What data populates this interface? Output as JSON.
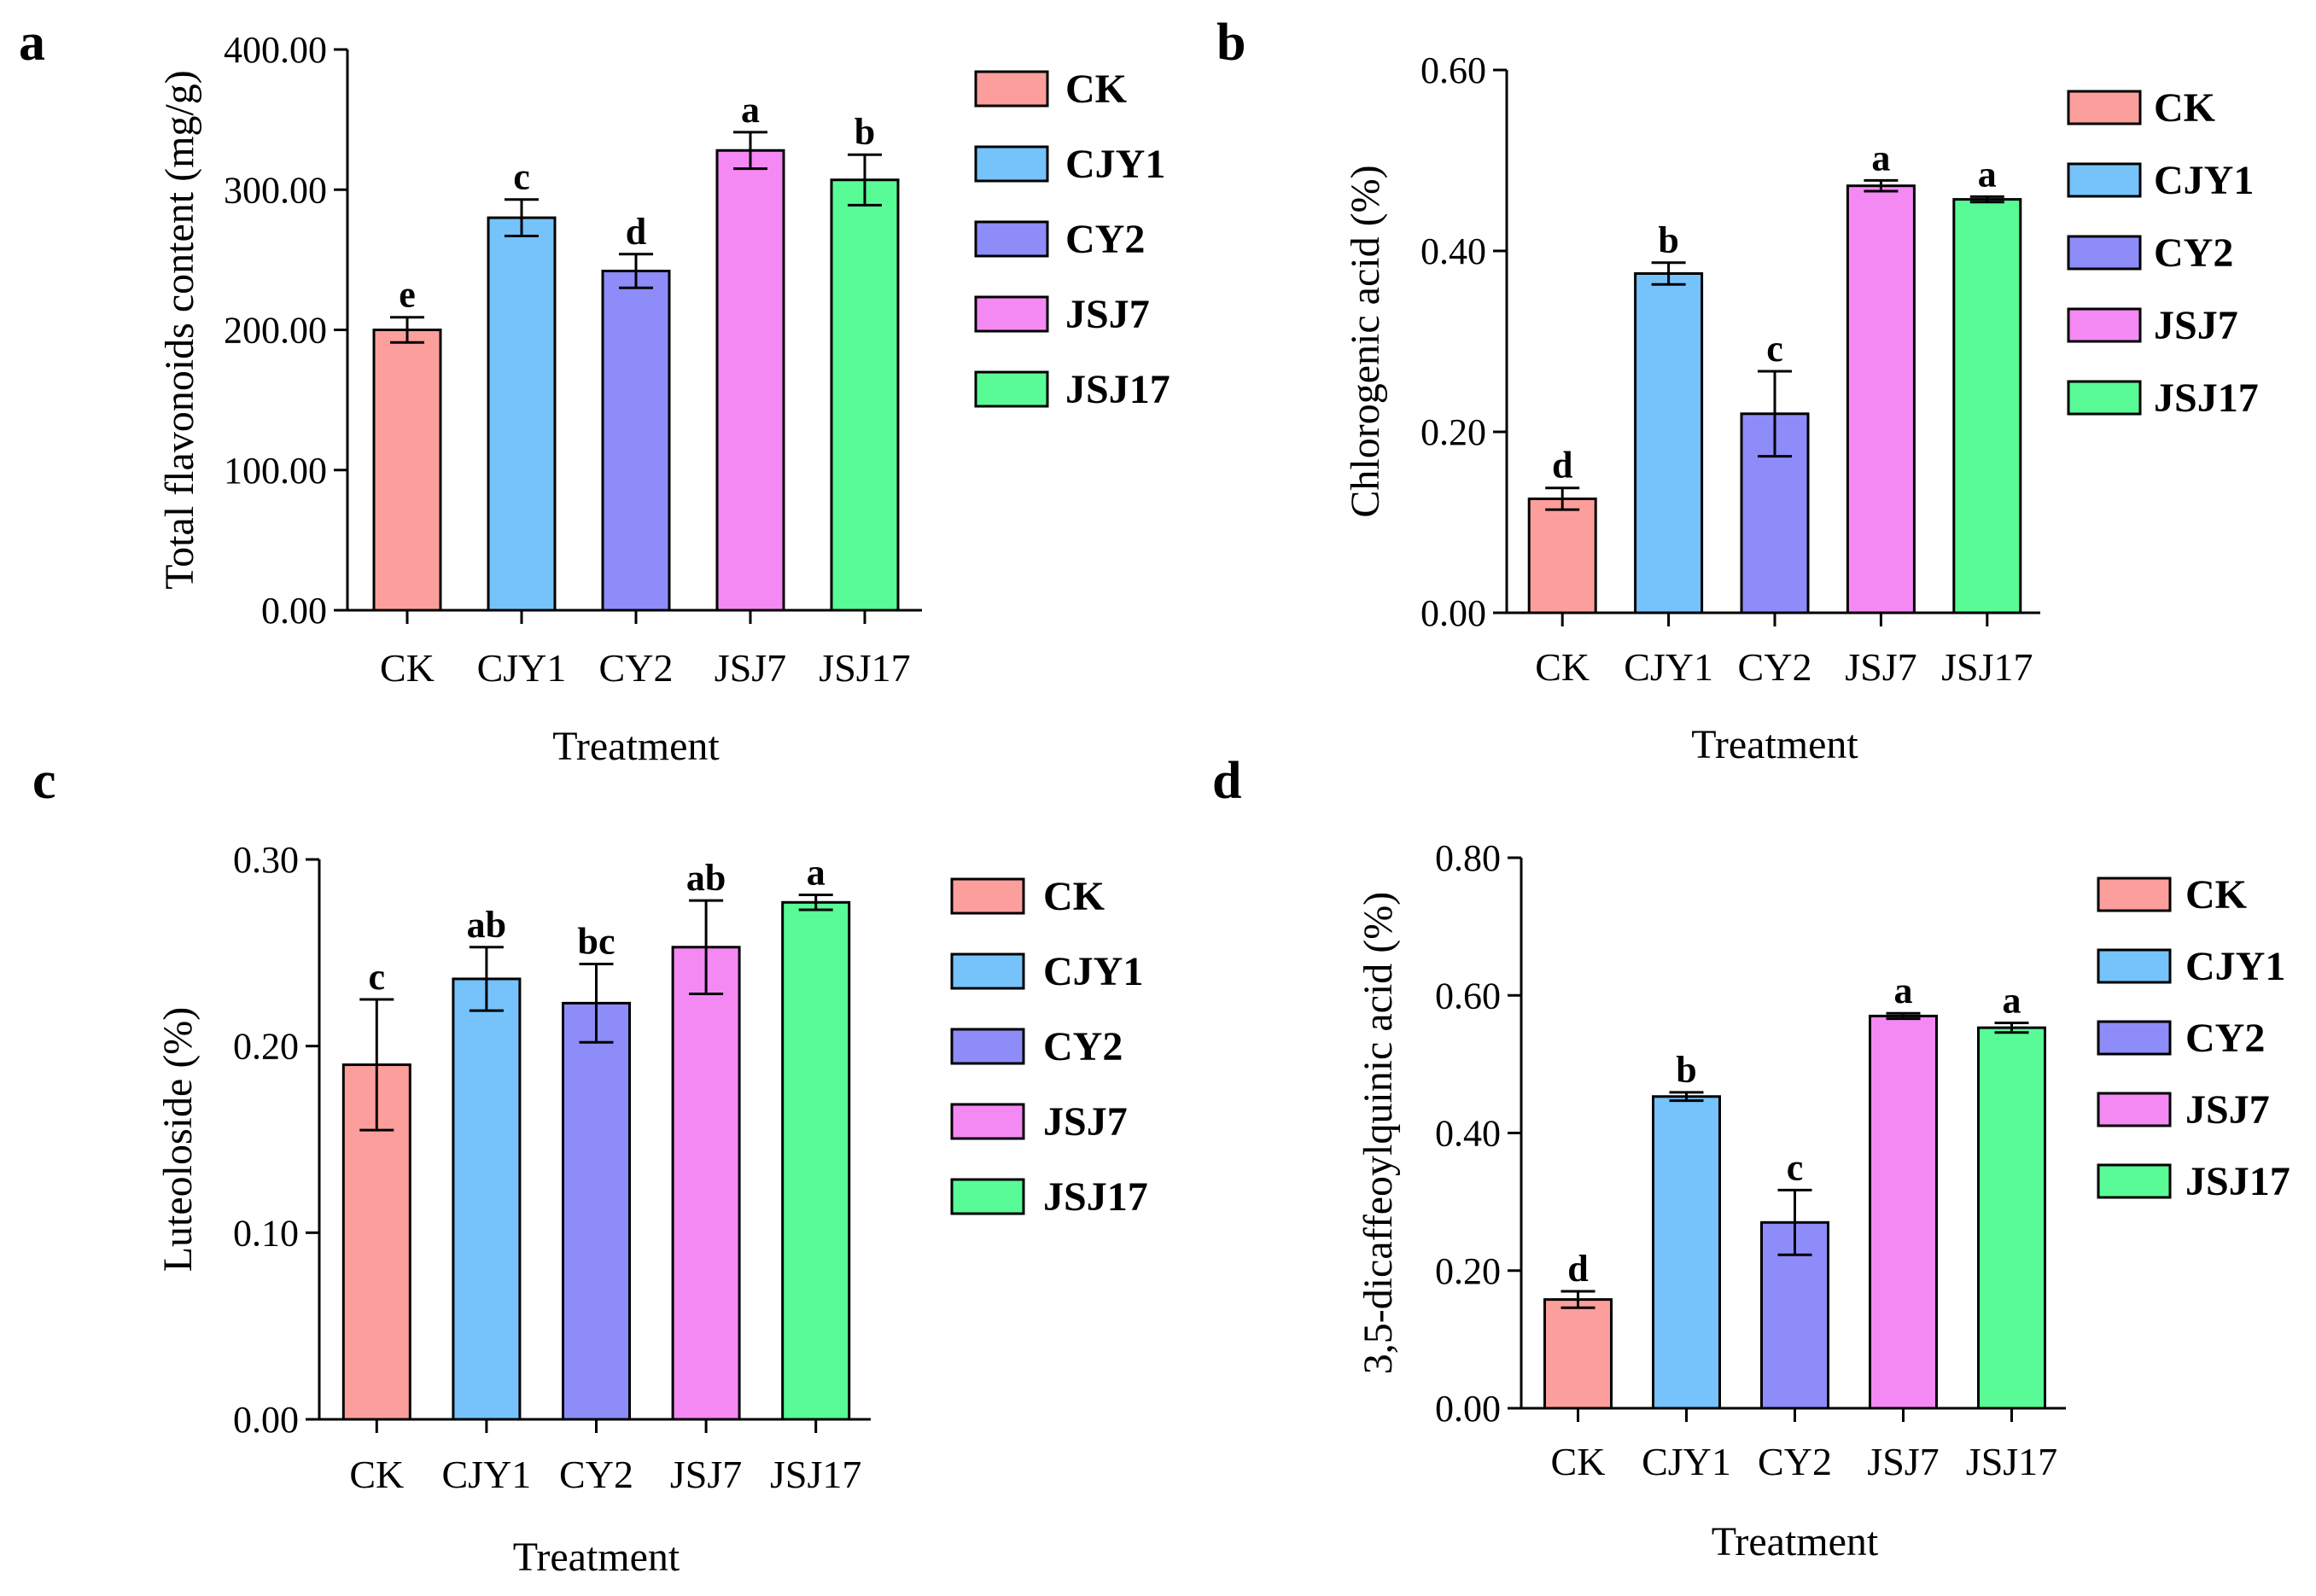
{
  "colors": {
    "CK": "#fc9f9c",
    "CJY1": "#76c2fb",
    "CY2": "#8d8cf8",
    "JSJ7": "#f489f3",
    "JSJ17": "#58fb96"
  },
  "legend_labels": [
    "CK",
    "CJY1",
    "CY2",
    "JSJ7",
    "JSJ17"
  ],
  "chart_data": [
    {
      "panel": "a",
      "type": "bar",
      "categories": [
        "CK",
        "CJY1",
        "CY2",
        "JSJ7",
        "JSJ17"
      ],
      "values": [
        200,
        280,
        242,
        328,
        307
      ],
      "errors": [
        9,
        13,
        12,
        13,
        18
      ],
      "significance": [
        "e",
        "c",
        "d",
        "a",
        "b"
      ],
      "ylabel": "Total flavonoids content (mg/g)",
      "xlabel": "Treatment",
      "ylim": [
        0,
        400
      ],
      "yticks": [
        "0.00",
        "100.00",
        "200.00",
        "300.00",
        "400.00"
      ]
    },
    {
      "panel": "b",
      "type": "bar",
      "categories": [
        "CK",
        "CJY1",
        "CY2",
        "JSJ7",
        "JSJ17"
      ],
      "values": [
        0.126,
        0.375,
        0.22,
        0.472,
        0.457
      ],
      "errors": [
        0.012,
        0.012,
        0.047,
        0.006,
        0.003
      ],
      "significance": [
        "d",
        "b",
        "c",
        "a",
        "a"
      ],
      "ylabel": "Chlorogenic acid (%)",
      "xlabel": "Treatment",
      "ylim": [
        0,
        0.6
      ],
      "yticks": [
        "0.00",
        "0.20",
        "0.40",
        "0.60"
      ]
    },
    {
      "panel": "c",
      "type": "bar",
      "categories": [
        "CK",
        "CJY1",
        "CY2",
        "JSJ7",
        "JSJ17"
      ],
      "values": [
        0.19,
        0.236,
        0.223,
        0.253,
        0.277
      ],
      "errors": [
        0.035,
        0.017,
        0.021,
        0.025,
        0.004
      ],
      "significance": [
        "c",
        "ab",
        "bc",
        "ab",
        "a"
      ],
      "ylabel": "Luteoloside (%)",
      "xlabel": "Treatment",
      "ylim": [
        0,
        0.3
      ],
      "yticks": [
        "0.00",
        "0.10",
        "0.20",
        "0.30"
      ]
    },
    {
      "panel": "d",
      "type": "bar",
      "categories": [
        "CK",
        "CJY1",
        "CY2",
        "JSJ7",
        "JSJ17"
      ],
      "values": [
        0.158,
        0.453,
        0.27,
        0.57,
        0.553
      ],
      "errors": [
        0.012,
        0.006,
        0.047,
        0.004,
        0.007
      ],
      "significance": [
        "d",
        "b",
        "c",
        "a",
        "a"
      ],
      "ylabel": "3,5-dicaffeoylquinic acid (%)",
      "xlabel": "Treatment",
      "ylim": [
        0,
        0.8
      ],
      "yticks": [
        "0.00",
        "0.20",
        "0.40",
        "0.60",
        "0.80"
      ]
    }
  ]
}
